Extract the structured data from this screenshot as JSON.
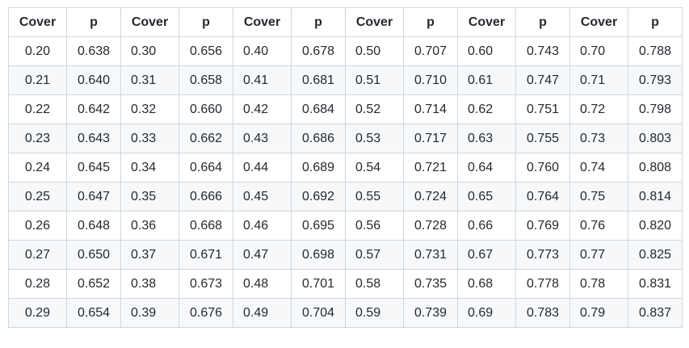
{
  "table": {
    "headers": [
      "Cover",
      "p",
      "Cover",
      "p",
      "Cover",
      "p",
      "Cover",
      "p",
      "Cover",
      "p",
      "Cover",
      "p"
    ],
    "rows": [
      [
        "0.20",
        "0.638",
        "0.30",
        "0.656",
        "0.40",
        "0.678",
        "0.50",
        "0.707",
        "0.60",
        "0.743",
        "0.70",
        "0.788"
      ],
      [
        "0.21",
        "0.640",
        "0.31",
        "0.658",
        "0.41",
        "0.681",
        "0.51",
        "0.710",
        "0.61",
        "0.747",
        "0.71",
        "0.793"
      ],
      [
        "0.22",
        "0.642",
        "0.32",
        "0.660",
        "0.42",
        "0.684",
        "0.52",
        "0.714",
        "0.62",
        "0.751",
        "0.72",
        "0.798"
      ],
      [
        "0.23",
        "0.643",
        "0.33",
        "0.662",
        "0.43",
        "0.686",
        "0.53",
        "0.717",
        "0.63",
        "0.755",
        "0.73",
        "0.803"
      ],
      [
        "0.24",
        "0.645",
        "0.34",
        "0.664",
        "0.44",
        "0.689",
        "0.54",
        "0.721",
        "0.64",
        "0.760",
        "0.74",
        "0.808"
      ],
      [
        "0.25",
        "0.647",
        "0.35",
        "0.666",
        "0.45",
        "0.692",
        "0.55",
        "0.724",
        "0.65",
        "0.764",
        "0.75",
        "0.814"
      ],
      [
        "0.26",
        "0.648",
        "0.36",
        "0.668",
        "0.46",
        "0.695",
        "0.56",
        "0.728",
        "0.66",
        "0.769",
        "0.76",
        "0.820"
      ],
      [
        "0.27",
        "0.650",
        "0.37",
        "0.671",
        "0.47",
        "0.698",
        "0.57",
        "0.731",
        "0.67",
        "0.773",
        "0.77",
        "0.825"
      ],
      [
        "0.28",
        "0.652",
        "0.38",
        "0.673",
        "0.48",
        "0.701",
        "0.58",
        "0.735",
        "0.68",
        "0.778",
        "0.78",
        "0.831"
      ],
      [
        "0.29",
        "0.654",
        "0.39",
        "0.676",
        "0.49",
        "0.704",
        "0.59",
        "0.739",
        "0.69",
        "0.783",
        "0.79",
        "0.837"
      ]
    ]
  }
}
